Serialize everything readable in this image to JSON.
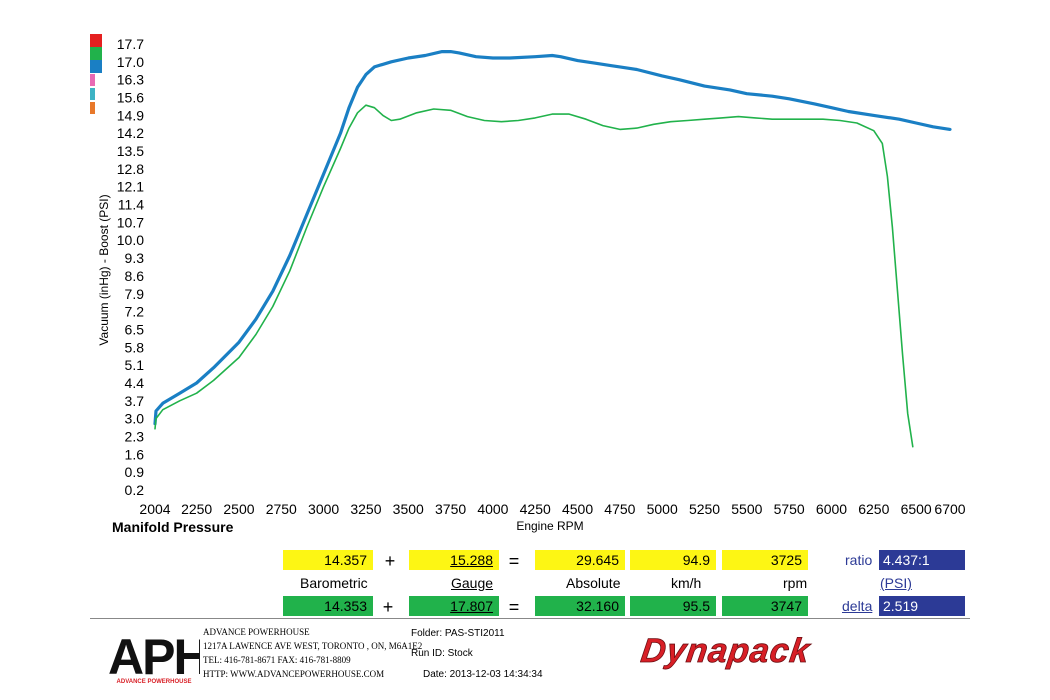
{
  "chart_data": {
    "type": "line",
    "title": "Manifold Pressure",
    "xlabel": "Engine RPM",
    "ylabel": "Vacuum (inHg) - Boost (PSI)",
    "xlim": [
      2004,
      6700
    ],
    "ylim": [
      0.2,
      17.7
    ],
    "x_ticks": [
      "2004",
      "2250",
      "2500",
      "2750",
      "3000",
      "3250",
      "3500",
      "3750",
      "4000",
      "4250",
      "4500",
      "4750",
      "5000",
      "5250",
      "5500",
      "5750",
      "6000",
      "6250",
      "6500",
      "6700"
    ],
    "y_ticks": [
      "17.7",
      "17.0",
      "16.3",
      "15.6",
      "14.9",
      "14.2",
      "13.5",
      "12.8",
      "12.1",
      "11.4",
      "10.7",
      "10.0",
      "9.3",
      "8.6",
      "7.9",
      "7.2",
      "6.5",
      "5.8",
      "5.1",
      "4.4",
      "3.7",
      "3.0",
      "2.3",
      "1.6",
      "0.9",
      "0.2"
    ],
    "legend_swatches": [
      "#e52020",
      "#21b24b",
      "#1a7fc4",
      "#e86ab4",
      "#3db3c4",
      "#e8782a"
    ],
    "series": [
      {
        "color": "#1a7fc4",
        "points": [
          [
            2004,
            2.8
          ],
          [
            2010,
            3.3
          ],
          [
            2050,
            3.6
          ],
          [
            2150,
            4.0
          ],
          [
            2250,
            4.4
          ],
          [
            2350,
            5.0
          ],
          [
            2500,
            6.0
          ],
          [
            2600,
            6.9
          ],
          [
            2700,
            8.0
          ],
          [
            2800,
            9.4
          ],
          [
            2900,
            11.0
          ],
          [
            3000,
            12.6
          ],
          [
            3100,
            14.2
          ],
          [
            3150,
            15.2
          ],
          [
            3200,
            16.0
          ],
          [
            3250,
            16.5
          ],
          [
            3300,
            16.8
          ],
          [
            3400,
            17.0
          ],
          [
            3500,
            17.15
          ],
          [
            3600,
            17.25
          ],
          [
            3700,
            17.4
          ],
          [
            3750,
            17.4
          ],
          [
            3800,
            17.35
          ],
          [
            3900,
            17.2
          ],
          [
            4000,
            17.15
          ],
          [
            4100,
            17.15
          ],
          [
            4250,
            17.2
          ],
          [
            4350,
            17.25
          ],
          [
            4400,
            17.2
          ],
          [
            4500,
            17.05
          ],
          [
            4600,
            16.95
          ],
          [
            4700,
            16.85
          ],
          [
            4750,
            16.8
          ],
          [
            4850,
            16.7
          ],
          [
            5000,
            16.45
          ],
          [
            5100,
            16.3
          ],
          [
            5250,
            16.05
          ],
          [
            5400,
            15.9
          ],
          [
            5500,
            15.75
          ],
          [
            5650,
            15.65
          ],
          [
            5750,
            15.55
          ],
          [
            5900,
            15.35
          ],
          [
            6000,
            15.2
          ],
          [
            6100,
            15.05
          ],
          [
            6250,
            14.9
          ],
          [
            6400,
            14.75
          ],
          [
            6500,
            14.6
          ],
          [
            6600,
            14.45
          ],
          [
            6700,
            14.35
          ]
        ]
      },
      {
        "color": "#21b24b",
        "points": [
          [
            2004,
            2.6
          ],
          [
            2010,
            3.0
          ],
          [
            2050,
            3.35
          ],
          [
            2150,
            3.7
          ],
          [
            2250,
            4.0
          ],
          [
            2350,
            4.5
          ],
          [
            2500,
            5.4
          ],
          [
            2600,
            6.3
          ],
          [
            2700,
            7.4
          ],
          [
            2800,
            8.8
          ],
          [
            2900,
            10.5
          ],
          [
            3000,
            12.1
          ],
          [
            3100,
            13.6
          ],
          [
            3150,
            14.4
          ],
          [
            3200,
            15.0
          ],
          [
            3250,
            15.3
          ],
          [
            3300,
            15.2
          ],
          [
            3350,
            14.9
          ],
          [
            3400,
            14.7
          ],
          [
            3450,
            14.75
          ],
          [
            3550,
            15.0
          ],
          [
            3650,
            15.15
          ],
          [
            3750,
            15.1
          ],
          [
            3850,
            14.85
          ],
          [
            3950,
            14.7
          ],
          [
            4050,
            14.65
          ],
          [
            4150,
            14.7
          ],
          [
            4250,
            14.8
          ],
          [
            4350,
            14.95
          ],
          [
            4450,
            14.95
          ],
          [
            4550,
            14.75
          ],
          [
            4650,
            14.5
          ],
          [
            4750,
            14.35
          ],
          [
            4850,
            14.4
          ],
          [
            4950,
            14.55
          ],
          [
            5050,
            14.65
          ],
          [
            5150,
            14.7
          ],
          [
            5250,
            14.75
          ],
          [
            5350,
            14.8
          ],
          [
            5450,
            14.85
          ],
          [
            5550,
            14.8
          ],
          [
            5650,
            14.75
          ],
          [
            5750,
            14.75
          ],
          [
            5850,
            14.75
          ],
          [
            5950,
            14.75
          ],
          [
            6050,
            14.7
          ],
          [
            6150,
            14.6
          ],
          [
            6250,
            14.3
          ],
          [
            6300,
            13.8
          ],
          [
            6330,
            12.5
          ],
          [
            6360,
            10.5
          ],
          [
            6390,
            8.0
          ],
          [
            6420,
            5.5
          ],
          [
            6450,
            3.2
          ],
          [
            6480,
            1.9
          ]
        ]
      }
    ]
  },
  "table": {
    "row1": {
      "barometric": "14.357",
      "op1": "+",
      "gauge": "15.288",
      "op2": "=",
      "absolute": "29.645",
      "speed": "94.9",
      "rpm": "3725",
      "ratio_label": "ratio",
      "ratio_value": "4.437:1"
    },
    "labels": {
      "barometric": "Barometric",
      "gauge": "Gauge",
      "absolute": "Absolute",
      "speed": "km/h",
      "rpm": "rpm",
      "unit": "(PSI)"
    },
    "row2": {
      "barometric": "14.353",
      "op1": "+",
      "gauge": "17.807",
      "op2": "=",
      "absolute": "32.160",
      "speed": "95.5",
      "rpm": "3747",
      "delta_label": "delta",
      "delta_value": "2.519"
    }
  },
  "footer": {
    "logo_text": "APH",
    "logo_subtext": "ADVANCE POWERHOUSE",
    "company_name": "ADVANCE POWERHOUSE",
    "address": "1217A LAWENCE AVE WEST, TORONTO , ON, M6A1E2",
    "phone": "TEL: 416-781-8671  FAX: 416-781-8809",
    "website": "HTTP:  WWW.ADVANCEPOWERHOUSE.COM",
    "folder": "Folder:  PAS-STI2011",
    "run_id": "Run ID:  Stock",
    "date": "Date:  2013-12-03 14:34:34",
    "brand": "Dynapack",
    "brand_color": "#d81f26"
  }
}
